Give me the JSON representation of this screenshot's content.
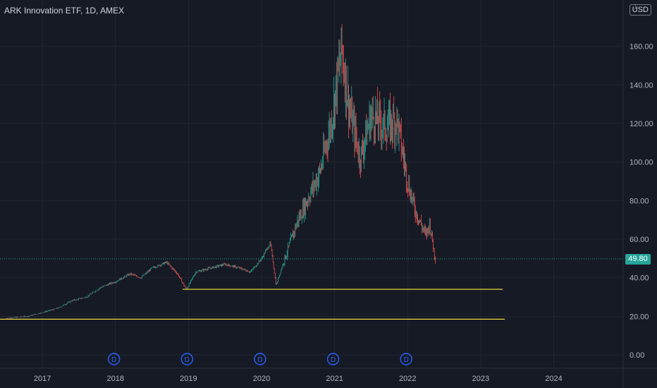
{
  "header": {
    "title": "ARK Innovation ETF, 1D, AMEX",
    "currency": "USD",
    "scale_mark": "1"
  },
  "last_price": "49.80",
  "colors": {
    "background": "#161a25",
    "grid": "#232632",
    "up": "#26a69a",
    "down": "#ef5350",
    "hline": "#ffeb3b",
    "axis_text": "#b2b5be",
    "dividend_marker": "#2962ff"
  },
  "chart_data": {
    "type": "candlestick",
    "title": "ARK Innovation ETF, 1D, AMEX",
    "x_axis": {
      "labels": [
        "2017",
        "2018",
        "2019",
        "2020",
        "2021",
        "2022",
        "2023",
        "2024"
      ]
    },
    "y_axis": {
      "labels": [
        "0.00",
        "20.00",
        "40.00",
        "60.00",
        "80.00",
        "100.00",
        "120.00",
        "140.00",
        "160.00"
      ],
      "values": [
        0,
        20,
        40,
        60,
        80,
        100,
        120,
        140,
        160
      ],
      "range": [
        -5,
        170
      ],
      "side": "right"
    },
    "grid": true,
    "series": [
      {
        "price_path": [
          [
            2016.5,
            19
          ],
          [
            2016.8,
            20
          ],
          [
            2017.0,
            22
          ],
          [
            2017.2,
            24
          ],
          [
            2017.4,
            28
          ],
          [
            2017.6,
            30
          ],
          [
            2017.8,
            35
          ],
          [
            2018.0,
            38
          ],
          [
            2018.2,
            42
          ],
          [
            2018.35,
            40
          ],
          [
            2018.5,
            45
          ],
          [
            2018.7,
            48
          ],
          [
            2018.85,
            42
          ],
          [
            2018.97,
            34
          ],
          [
            2019.1,
            43
          ],
          [
            2019.3,
            45
          ],
          [
            2019.5,
            47
          ],
          [
            2019.7,
            45
          ],
          [
            2019.85,
            43
          ],
          [
            2020.0,
            50
          ],
          [
            2020.12,
            58
          ],
          [
            2020.2,
            36
          ],
          [
            2020.3,
            48
          ],
          [
            2020.5,
            70
          ],
          [
            2020.6,
            78
          ],
          [
            2020.8,
            95
          ],
          [
            2020.95,
            120
          ],
          [
            2021.1,
            158
          ],
          [
            2021.2,
            128
          ],
          [
            2021.35,
            102
          ],
          [
            2021.5,
            124
          ],
          [
            2021.7,
            118
          ],
          [
            2021.85,
            122
          ],
          [
            2022.0,
            90
          ],
          [
            2022.1,
            75
          ],
          [
            2022.25,
            62
          ],
          [
            2022.3,
            68
          ],
          [
            2022.38,
            49.8
          ]
        ]
      }
    ],
    "horizontal_lines": [
      {
        "y": 34,
        "from": 2018.92,
        "to": 2023.3
      },
      {
        "y": 18.5,
        "from": 2016.4,
        "to": 2023.33
      }
    ],
    "dividend_markers": {
      "label": "D",
      "dates": [
        2017.98,
        2018.98,
        2019.98,
        2020.98,
        2021.98
      ]
    },
    "last_value_line": 49.8
  }
}
